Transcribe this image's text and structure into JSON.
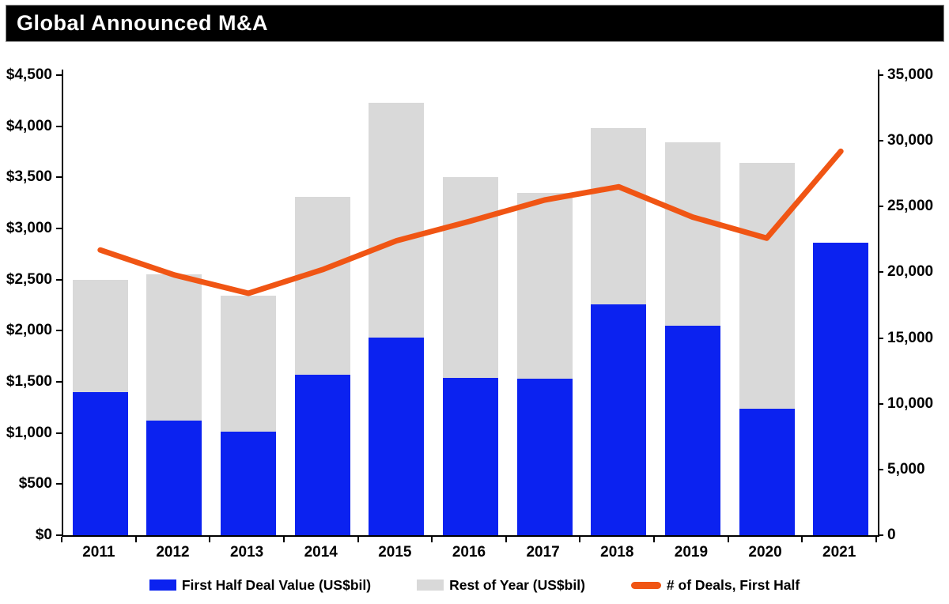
{
  "header": {
    "title": "Global Announced M&A"
  },
  "chart_data": {
    "type": "combo-stacked-bar-line",
    "title": "Global Announced M&A",
    "categories": [
      "2011",
      "2012",
      "2013",
      "2014",
      "2015",
      "2016",
      "2017",
      "2018",
      "2019",
      "2020",
      "2021"
    ],
    "series": [
      {
        "name": "First Half Deal Value (US$bil)",
        "type": "bar",
        "stack": "total",
        "axis": "left",
        "color": "#0b22f0",
        "values": [
          1400,
          1120,
          1010,
          1570,
          1930,
          1540,
          1530,
          2260,
          2050,
          1240,
          2860
        ]
      },
      {
        "name": "Rest of Year (US$bil)",
        "type": "bar",
        "stack": "total",
        "axis": "left",
        "color": "#d9d9d9",
        "values": [
          1100,
          1430,
          1330,
          1740,
          2300,
          1960,
          1820,
          1720,
          1790,
          2400,
          0
        ]
      },
      {
        "name": "# of Deals, First Half",
        "type": "line",
        "axis": "right",
        "color": "#f05514",
        "values": [
          21700,
          19800,
          18400,
          20200,
          22400,
          23900,
          25500,
          26500,
          24200,
          22600,
          29200
        ]
      }
    ],
    "left_axis": {
      "min": 0,
      "max": 4500,
      "step": 500,
      "tick_labels": [
        "$0",
        "$500",
        "$1,000",
        "$1,500",
        "$2,000",
        "$2,500",
        "$3,000",
        "$3,500",
        "$4,000",
        "$4,500"
      ]
    },
    "right_axis": {
      "min": 0,
      "max": 35000,
      "step": 5000,
      "tick_labels": [
        "0",
        "5,000",
        "10,000",
        "15,000",
        "20,000",
        "25,000",
        "30,000",
        "35,000"
      ]
    },
    "grid": "off",
    "legend_position": "bottom",
    "colors": {
      "bar_first_half": "#0b22f0",
      "bar_rest_of_year": "#d9d9d9",
      "deals_line": "#f05514",
      "title_bg": "#000000",
      "title_fg": "#ffffff"
    }
  }
}
